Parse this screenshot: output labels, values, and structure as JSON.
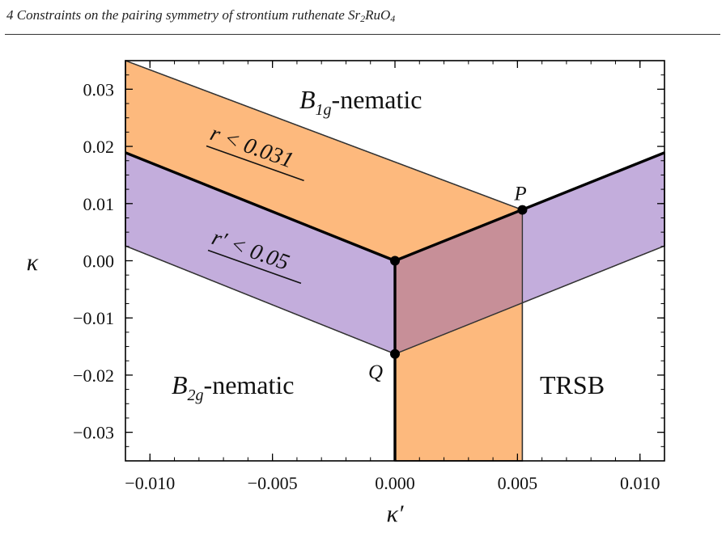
{
  "header": {
    "text": "4 Constraints on the pairing symmetry of strontium ruthenate Sr",
    "sub1": "2",
    "mid": "RuO",
    "sub2": "4"
  },
  "chart_data": {
    "type": "area",
    "xlabel": "κ′",
    "ylabel": "κ",
    "xlim": [
      -0.011,
      0.011
    ],
    "ylim": [
      -0.035,
      0.035
    ],
    "xticks": [
      -0.01,
      -0.005,
      0.0,
      0.005,
      0.01
    ],
    "xtick_labels": [
      "−0.010",
      "−0.005",
      "0.000",
      "0.005",
      "0.010"
    ],
    "yticks": [
      -0.03,
      -0.02,
      -0.01,
      0.0,
      0.01,
      0.02,
      0.03
    ],
    "ytick_labels": [
      "−0.03",
      "−0.02",
      "−0.01",
      "0.00",
      "0.01",
      "0.02",
      "0.03"
    ],
    "phase_boundaries": [
      {
        "name": "B1g/B2g",
        "points": [
          [
            -0.011,
            0.0189
          ],
          [
            0,
            0
          ]
        ]
      },
      {
        "name": "B1g/TRSB",
        "points": [
          [
            0,
            0
          ],
          [
            0.011,
            0.0189
          ]
        ]
      },
      {
        "name": "B2g/TRSB",
        "points": [
          [
            0,
            0
          ],
          [
            0,
            -0.035
          ]
        ]
      }
    ],
    "regions": [
      {
        "label": "r < 0.031",
        "color": "#fdb97d",
        "points": [
          [
            -0.011,
            0.035
          ],
          [
            -0.011,
            0.0189
          ],
          [
            0,
            0
          ],
          [
            0,
            -0.035
          ],
          [
            0.0052,
            -0.035
          ],
          [
            0.0052,
            0.0089
          ],
          [
            -0.011,
            0.035
          ]
        ]
      },
      {
        "label": "r′ < 0.05",
        "color": "#c3addc",
        "points": [
          [
            -0.011,
            0.0189
          ],
          [
            0,
            0
          ],
          [
            0.011,
            0.0189
          ],
          [
            0.011,
            0.0026
          ],
          [
            0,
            -0.0163
          ],
          [
            -0.011,
            0.0026
          ]
        ]
      }
    ],
    "overlap_color": "#c78f98",
    "points": [
      {
        "label": "",
        "x": 0.0,
        "y": 0.0
      },
      {
        "label": "P",
        "x": 0.0052,
        "y": 0.0089
      },
      {
        "label": "Q",
        "x": 0.0,
        "y": -0.0163
      }
    ],
    "annotations": {
      "b1g_base": "B",
      "b1g_sub": "1g",
      "b1g_rest": "-nematic",
      "b2g_base": "B",
      "b2g_sub": "2g",
      "b2g_rest": "-nematic",
      "trsb": "TRSB",
      "r_label": "r < 0.031",
      "rp_label": "r′ < 0.05"
    }
  }
}
